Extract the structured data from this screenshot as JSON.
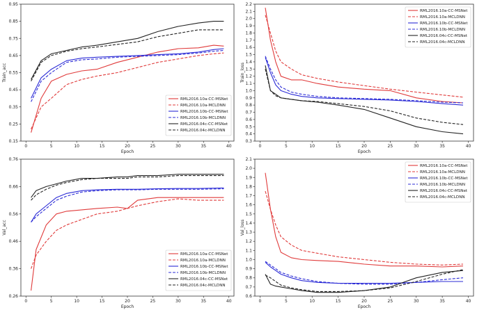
{
  "styles": {
    "RML2016.10a-CC-MSNet": {
      "color": "#e03a3a",
      "dash": ""
    },
    "RML2016.10a-MCLDNN": {
      "color": "#e03a3a",
      "dash": "4,2"
    },
    "RML2016.10b-CC-MSNet": {
      "color": "#2b2bd6",
      "dash": ""
    },
    "RML2016.10b-MCLDNN": {
      "color": "#2b2bd6",
      "dash": "4,2"
    },
    "RML2016.04c-CC-MSNet": {
      "color": "#222222",
      "dash": ""
    },
    "RML2016.04c-MCLDNN": {
      "color": "#222222",
      "dash": "4,2"
    }
  },
  "chart_data": [
    {
      "type": "line",
      "xlabel": "Epoch",
      "ylabel": "Train_acc",
      "xlim": [
        -1,
        41
      ],
      "ylim": [
        0.15,
        0.95
      ],
      "xticks": [
        0,
        5,
        10,
        15,
        20,
        25,
        30,
        35,
        40
      ],
      "yticks": [
        0.15,
        0.25,
        0.35,
        0.45,
        0.55,
        0.65,
        0.75,
        0.85,
        0.95
      ],
      "ytick_labels": [
        "0.15",
        "0.25",
        "0.35",
        "0.45",
        "0.55",
        "0.65",
        "0.75",
        "0.85",
        "0.95"
      ],
      "legend_loc": "lower-right",
      "x": [
        1,
        3,
        5,
        8,
        11,
        14,
        18,
        22,
        26,
        30,
        34,
        37,
        39
      ],
      "series": [
        {
          "name": "RML2016.10a-CC-MSNet",
          "values": [
            0.2,
            0.4,
            0.5,
            0.54,
            0.56,
            0.57,
            0.61,
            0.64,
            0.67,
            0.69,
            0.695,
            0.71,
            0.705
          ]
        },
        {
          "name": "RML2016.10a-MCLDNN",
          "values": [
            0.22,
            0.35,
            0.4,
            0.48,
            0.51,
            0.53,
            0.55,
            0.58,
            0.61,
            0.63,
            0.65,
            0.66,
            0.665
          ]
        },
        {
          "name": "RML2016.10b-CC-MSNet",
          "values": [
            0.4,
            0.52,
            0.57,
            0.62,
            0.635,
            0.64,
            0.645,
            0.65,
            0.655,
            0.66,
            0.67,
            0.685,
            0.69
          ]
        },
        {
          "name": "RML2016.10b-MCLDNN",
          "values": [
            0.38,
            0.5,
            0.55,
            0.61,
            0.625,
            0.63,
            0.64,
            0.645,
            0.65,
            0.655,
            0.665,
            0.675,
            0.68
          ]
        },
        {
          "name": "RML2016.04c-CC-MSNet",
          "values": [
            0.51,
            0.62,
            0.66,
            0.68,
            0.7,
            0.71,
            0.73,
            0.75,
            0.79,
            0.82,
            0.84,
            0.85,
            0.85
          ]
        },
        {
          "name": "RML2016.04c-MCLDNN",
          "values": [
            0.5,
            0.61,
            0.65,
            0.675,
            0.69,
            0.7,
            0.715,
            0.73,
            0.76,
            0.78,
            0.8,
            0.8,
            0.8
          ]
        }
      ]
    },
    {
      "type": "line",
      "xlabel": "Epoch",
      "ylabel": "Train_loss",
      "xlim": [
        -1,
        41
      ],
      "ylim": [
        0.3,
        2.2
      ],
      "xticks": [
        0,
        5,
        10,
        15,
        20,
        25,
        30,
        35,
        40
      ],
      "yticks": [
        0.3,
        0.4,
        0.5,
        0.6,
        0.7,
        0.8,
        0.9,
        1.0,
        1.1,
        1.2,
        1.3,
        1.4,
        1.5,
        1.6,
        1.7,
        1.8,
        1.9,
        2.0,
        2.1,
        2.2
      ],
      "ytick_labels": [
        "0.3",
        "0.4",
        "0.5",
        "0.6",
        "0.7",
        "0.8",
        "0.9",
        "1.0",
        "1.1",
        "1.2",
        "1.3",
        "1.4",
        "1.5",
        "1.6",
        "1.7",
        "1.8",
        "1.9",
        "2.0",
        "2.1",
        "2.2"
      ],
      "legend_loc": "top-right",
      "x": [
        1,
        2,
        3,
        4,
        6,
        8,
        11,
        15,
        20,
        25,
        30,
        35,
        39
      ],
      "series": [
        {
          "name": "RML2016.10a-CC-MSNet",
          "values": [
            2.15,
            1.7,
            1.4,
            1.2,
            1.15,
            1.15,
            1.1,
            1.05,
            1.02,
            1.0,
            0.9,
            0.85,
            0.83
          ]
        },
        {
          "name": "RML2016.10a-MCLDNN",
          "values": [
            2.05,
            1.8,
            1.55,
            1.4,
            1.3,
            1.22,
            1.17,
            1.12,
            1.07,
            1.02,
            0.98,
            0.94,
            0.91
          ]
        },
        {
          "name": "RML2016.10b-CC-MSNet",
          "values": [
            1.46,
            1.25,
            1.08,
            1.0,
            0.95,
            0.92,
            0.9,
            0.89,
            0.88,
            0.87,
            0.85,
            0.82,
            0.8
          ]
        },
        {
          "name": "RML2016.10b-MCLDNN",
          "values": [
            1.48,
            1.3,
            1.15,
            1.05,
            0.98,
            0.95,
            0.92,
            0.9,
            0.89,
            0.88,
            0.86,
            0.84,
            0.83
          ]
        },
        {
          "name": "RML2016.04c-CC-MSNet",
          "values": [
            1.35,
            1.0,
            0.95,
            0.9,
            0.88,
            0.86,
            0.84,
            0.8,
            0.74,
            0.62,
            0.5,
            0.43,
            0.4
          ]
        },
        {
          "name": "RML2016.04c-MCLDNN",
          "values": [
            1.3,
            1.0,
            0.93,
            0.9,
            0.88,
            0.86,
            0.85,
            0.82,
            0.78,
            0.72,
            0.62,
            0.56,
            0.53
          ]
        }
      ]
    },
    {
      "type": "line",
      "xlabel": "Epoch",
      "ylabel": "Val_acc",
      "xlim": [
        -1,
        41
      ],
      "ylim": [
        0.26,
        0.76
      ],
      "xticks": [
        0,
        5,
        10,
        15,
        20,
        25,
        30,
        35,
        40
      ],
      "yticks": [
        0.26,
        0.36,
        0.46,
        0.56,
        0.66,
        0.76
      ],
      "ytick_labels": [
        "0.26",
        "0.36",
        "0.46",
        "0.56",
        "0.66",
        "0.76"
      ],
      "legend_loc": "lower-right",
      "x": [
        1,
        2,
        4,
        6,
        8,
        11,
        14,
        18,
        20,
        22,
        26,
        30,
        34,
        39
      ],
      "series": [
        {
          "name": "RML2016.10a-CC-MSNet",
          "values": [
            0.28,
            0.43,
            0.52,
            0.56,
            0.57,
            0.575,
            0.58,
            0.585,
            0.58,
            0.61,
            0.62,
            0.62,
            0.62,
            0.62
          ]
        },
        {
          "name": "RML2016.10a-MCLDNN",
          "values": [
            0.36,
            0.41,
            0.46,
            0.5,
            0.52,
            0.54,
            0.56,
            0.57,
            0.58,
            0.59,
            0.605,
            0.615,
            0.61,
            0.61
          ]
        },
        {
          "name": "RML2016.10b-CC-MSNet",
          "values": [
            0.53,
            0.56,
            0.59,
            0.62,
            0.635,
            0.645,
            0.648,
            0.65,
            0.65,
            0.65,
            0.652,
            0.653,
            0.653,
            0.655
          ]
        },
        {
          "name": "RML2016.10b-MCLDNN",
          "values": [
            0.53,
            0.55,
            0.58,
            0.61,
            0.625,
            0.64,
            0.645,
            0.648,
            0.648,
            0.648,
            0.65,
            0.65,
            0.65,
            0.652
          ]
        },
        {
          "name": "RML2016.04c-CC-MSNet",
          "values": [
            0.62,
            0.645,
            0.66,
            0.67,
            0.68,
            0.69,
            0.69,
            0.695,
            0.695,
            0.7,
            0.7,
            0.705,
            0.705,
            0.705
          ]
        },
        {
          "name": "RML2016.04c-MCLDNN",
          "values": [
            0.61,
            0.63,
            0.65,
            0.665,
            0.675,
            0.685,
            0.69,
            0.69,
            0.69,
            0.695,
            0.695,
            0.7,
            0.7,
            0.7
          ]
        }
      ]
    },
    {
      "type": "line",
      "xlabel": "Epoch",
      "ylabel": "Val_loss",
      "xlim": [
        -1,
        41
      ],
      "ylim": [
        0.6,
        2.1
      ],
      "xticks": [
        0,
        5,
        10,
        15,
        20,
        25,
        30,
        35,
        40
      ],
      "yticks": [
        0.6,
        0.7,
        0.8,
        0.9,
        1.0,
        1.1,
        1.2,
        1.3,
        1.4,
        1.5,
        1.6,
        1.7,
        1.8,
        1.9,
        2.0,
        2.1
      ],
      "ytick_labels": [
        "0.6",
        "0.7",
        "0.8",
        "0.9",
        "1.0",
        "1.1",
        "1.2",
        "1.3",
        "1.4",
        "1.5",
        "1.6",
        "1.7",
        "1.8",
        "1.9",
        "2.0",
        "2.1"
      ],
      "legend_loc": "top-right",
      "x": [
        1,
        2,
        3,
        4,
        6,
        8,
        11,
        15,
        20,
        25,
        30,
        35,
        39
      ],
      "series": [
        {
          "name": "RML2016.10a-CC-MSNet",
          "values": [
            1.95,
            1.55,
            1.25,
            1.08,
            1.02,
            1.0,
            0.99,
            0.98,
            0.95,
            0.93,
            0.93,
            0.92,
            0.93
          ]
        },
        {
          "name": "RML2016.10a-MCLDNN",
          "values": [
            1.75,
            1.55,
            1.38,
            1.25,
            1.16,
            1.1,
            1.07,
            1.03,
            1.0,
            0.97,
            0.95,
            0.94,
            0.95
          ]
        },
        {
          "name": "RML2016.10b-CC-MSNet",
          "values": [
            0.97,
            0.92,
            0.88,
            0.84,
            0.8,
            0.77,
            0.75,
            0.74,
            0.74,
            0.74,
            0.75,
            0.76,
            0.76
          ]
        },
        {
          "name": "RML2016.10b-MCLDNN",
          "values": [
            0.98,
            0.94,
            0.9,
            0.86,
            0.82,
            0.79,
            0.76,
            0.74,
            0.73,
            0.73,
            0.75,
            0.78,
            0.8
          ]
        },
        {
          "name": "RML2016.04c-CC-MSNet",
          "values": [
            0.84,
            0.73,
            0.71,
            0.7,
            0.68,
            0.66,
            0.64,
            0.64,
            0.66,
            0.7,
            0.8,
            0.86,
            0.88
          ]
        },
        {
          "name": "RML2016.04c-MCLDNN",
          "values": [
            0.83,
            0.8,
            0.76,
            0.72,
            0.69,
            0.67,
            0.65,
            0.65,
            0.66,
            0.69,
            0.76,
            0.84,
            0.89
          ]
        }
      ]
    }
  ]
}
